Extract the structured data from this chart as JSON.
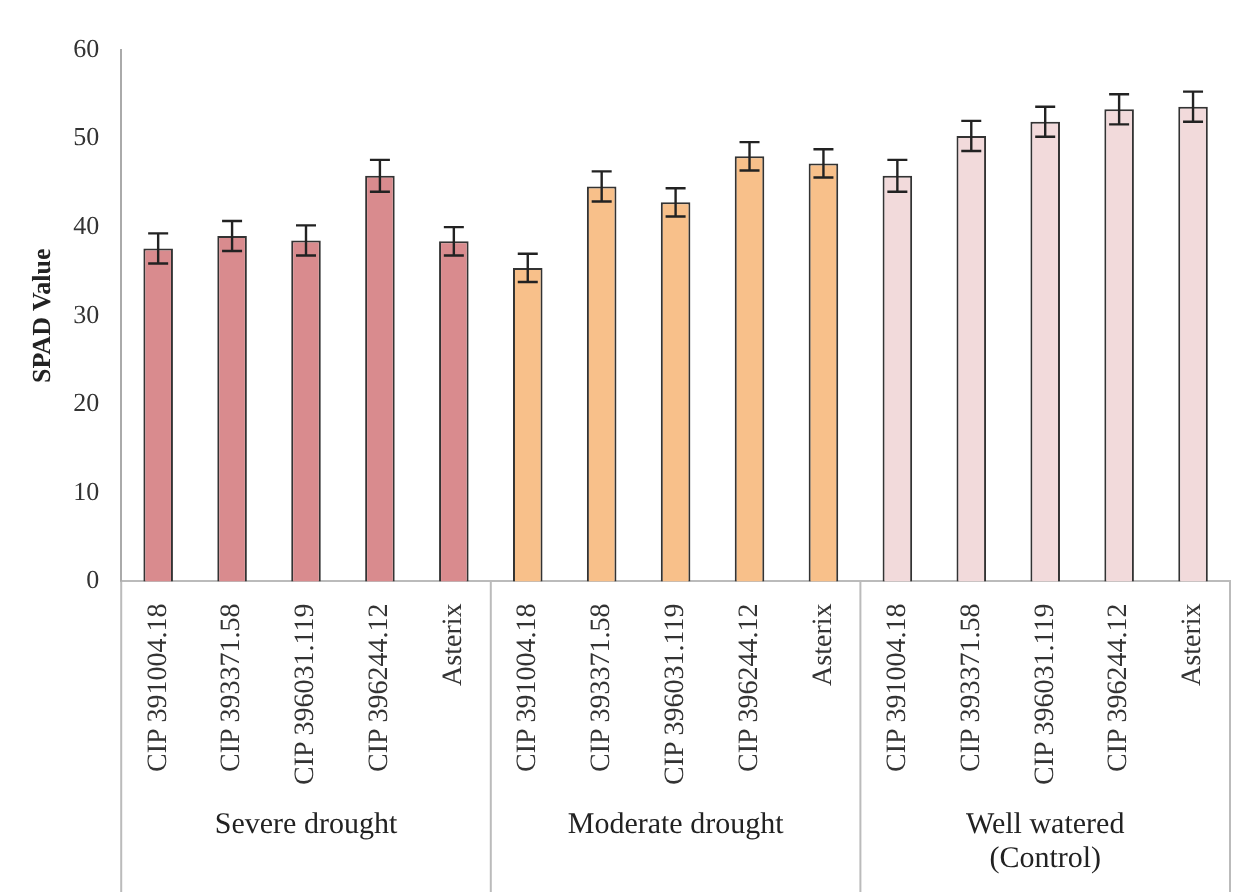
{
  "chart_data": {
    "type": "bar",
    "ylabel": "SPAD Value",
    "categories": [
      "CIP 391004.18",
      "CIP 393371.58",
      "CIP 396031.119",
      "CIP 396244.12",
      "Asterix",
      "CIP 391004.18",
      "CIP 393371.58",
      "CIP 396031.119",
      "CIP 396244.12",
      "Asterix",
      "CIP 391004.18",
      "CIP 393371.58",
      "CIP 396031.119",
      "CIP 396244.12",
      "Asterix"
    ],
    "values": [
      37.6,
      39,
      38.5,
      45.8,
      38.4,
      35.4,
      44.6,
      42.8,
      48,
      47.2,
      45.8,
      50.3,
      51.9,
      53.3,
      53.6
    ],
    "errors": [
      1.7,
      1.7,
      1.7,
      1.8,
      1.6,
      1.6,
      1.7,
      1.6,
      1.6,
      1.6,
      1.8,
      1.7,
      1.7,
      1.7,
      1.7
    ],
    "colors": [
      "#d98b8e",
      "#d98b8e",
      "#d98b8e",
      "#d98b8e",
      "#d98b8e",
      "#f8c08a",
      "#f8c08a",
      "#f8c08a",
      "#f8c08a",
      "#f8c08a",
      "#f2dadb",
      "#f2dadb",
      "#f2dadb",
      "#f2dadb",
      "#f2dadb"
    ],
    "ylim": [
      0,
      60
    ],
    "yticks": [
      0,
      10,
      20,
      30,
      40,
      50,
      60
    ],
    "grid": false,
    "legend": false,
    "annotations": [
      "Severe drought",
      "Moderate drought",
      "Well watered\n(Control)"
    ]
  }
}
